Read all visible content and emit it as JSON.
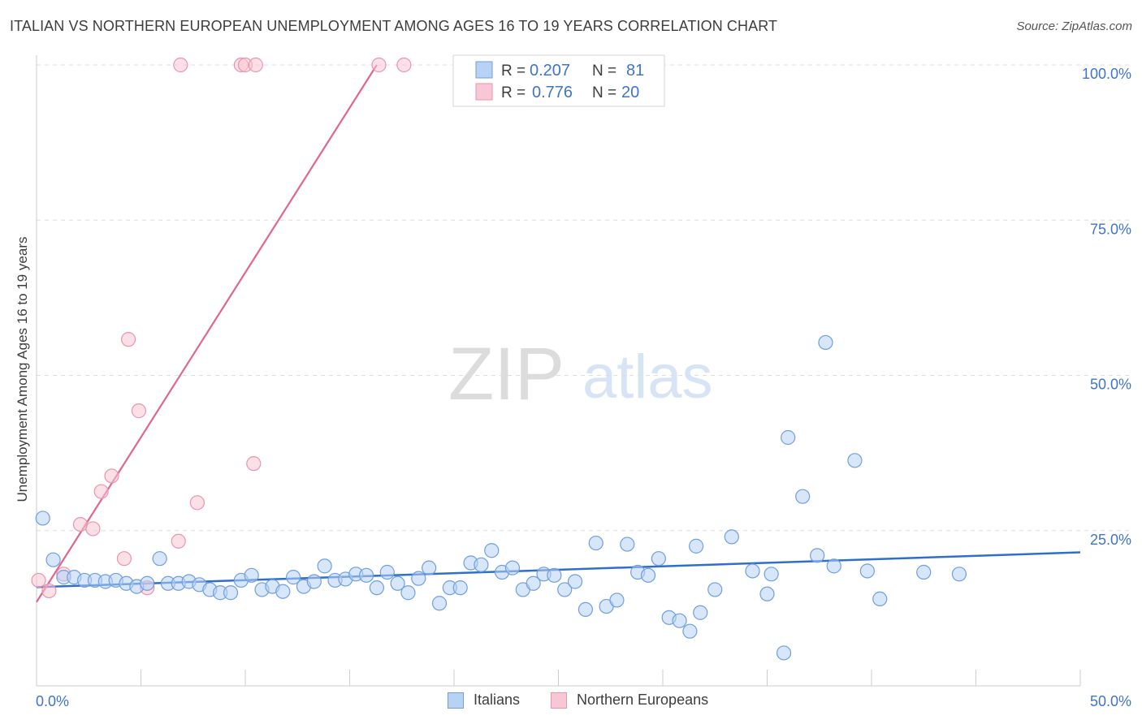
{
  "title": "ITALIAN VS NORTHERN EUROPEAN UNEMPLOYMENT AMONG AGES 16 TO 19 YEARS CORRELATION CHART",
  "source": "Source: ZipAtlas.com",
  "watermark": {
    "zip": "ZIP",
    "atlas": "atlas"
  },
  "colors": {
    "italians_fill": "#b8d2f5",
    "italians_stroke": "#6f9fdc",
    "italians_line": "#2f6fcc",
    "northern_fill": "#f8c6d4",
    "northern_stroke": "#e895ad",
    "northern_line": "#e0668e",
    "tick_label": "#3f74c9",
    "grid": "#dddddd"
  },
  "legend_top": {
    "rows": [
      {
        "r_label": "R =",
        "r_value": "0.207",
        "n_label": "N =",
        "n_value": "81"
      },
      {
        "r_label": "R =",
        "r_value": "0.776",
        "n_label": "N =",
        "n_value": "20"
      }
    ]
  },
  "legend_bottom": {
    "italians": "Italians",
    "northern": "Northern Europeans"
  },
  "chart_data": {
    "type": "scatter",
    "title": "ITALIAN VS NORTHERN EUROPEAN UNEMPLOYMENT AMONG AGES 16 TO 19 YEARS CORRELATION CHART",
    "xlabel": "",
    "ylabel": "Unemployment Among Ages 16 to 19 years",
    "xlim": [
      0,
      50
    ],
    "ylim": [
      0,
      100
    ],
    "x_tick_labels": [
      "0.0%",
      "50.0%"
    ],
    "y_ticks": [
      25,
      50,
      75,
      100
    ],
    "y_tick_labels": [
      "25.0%",
      "50.0%",
      "75.0%",
      "100.0%"
    ],
    "grid": true,
    "legend_position": "top-center",
    "series": [
      {
        "name": "Italians",
        "r": 0.207,
        "n": 81,
        "trend": {
          "x0": 0,
          "y0": 15.9,
          "x1": 50,
          "y1": 21.5
        },
        "points": [
          [
            0.3,
            27.0
          ],
          [
            0.8,
            20.3
          ],
          [
            1.3,
            17.5
          ],
          [
            1.8,
            17.5
          ],
          [
            2.3,
            17.0
          ],
          [
            2.8,
            17.0
          ],
          [
            3.3,
            16.8
          ],
          [
            3.8,
            17.0
          ],
          [
            4.3,
            16.5
          ],
          [
            4.8,
            16.0
          ],
          [
            5.3,
            16.5
          ],
          [
            5.9,
            20.5
          ],
          [
            6.3,
            16.5
          ],
          [
            6.8,
            16.5
          ],
          [
            7.3,
            16.8
          ],
          [
            7.8,
            16.3
          ],
          [
            8.3,
            15.5
          ],
          [
            8.8,
            15.0
          ],
          [
            9.3,
            15.0
          ],
          [
            9.8,
            17.0
          ],
          [
            10.3,
            17.8
          ],
          [
            10.8,
            15.5
          ],
          [
            11.3,
            16.0
          ],
          [
            11.8,
            15.2
          ],
          [
            12.3,
            17.5
          ],
          [
            12.8,
            16.0
          ],
          [
            13.3,
            16.8
          ],
          [
            13.8,
            19.3
          ],
          [
            14.3,
            17.0
          ],
          [
            14.8,
            17.2
          ],
          [
            15.3,
            18.0
          ],
          [
            15.8,
            17.8
          ],
          [
            16.3,
            15.8
          ],
          [
            16.8,
            18.3
          ],
          [
            17.3,
            16.5
          ],
          [
            17.8,
            15.0
          ],
          [
            18.3,
            17.3
          ],
          [
            18.8,
            19.0
          ],
          [
            19.3,
            13.3
          ],
          [
            19.8,
            15.8
          ],
          [
            20.3,
            15.8
          ],
          [
            20.8,
            19.8
          ],
          [
            21.3,
            19.5
          ],
          [
            21.8,
            21.8
          ],
          [
            22.3,
            18.3
          ],
          [
            22.8,
            19.0
          ],
          [
            23.3,
            15.5
          ],
          [
            23.8,
            16.5
          ],
          [
            24.3,
            18.0
          ],
          [
            24.8,
            17.8
          ],
          [
            25.3,
            15.5
          ],
          [
            25.8,
            16.8
          ],
          [
            26.3,
            12.3
          ],
          [
            26.8,
            23.0
          ],
          [
            27.3,
            12.8
          ],
          [
            27.8,
            13.8
          ],
          [
            28.3,
            22.8
          ],
          [
            28.8,
            18.3
          ],
          [
            29.3,
            17.8
          ],
          [
            29.8,
            20.5
          ],
          [
            30.3,
            11.0
          ],
          [
            30.8,
            10.5
          ],
          [
            31.3,
            8.8
          ],
          [
            31.8,
            11.8
          ],
          [
            31.6,
            22.5
          ],
          [
            32.5,
            15.5
          ],
          [
            33.3,
            24.0
          ],
          [
            34.3,
            18.5
          ],
          [
            35.0,
            14.8
          ],
          [
            35.2,
            18.0
          ],
          [
            35.8,
            5.3
          ],
          [
            36.0,
            40.0
          ],
          [
            36.7,
            30.5
          ],
          [
            37.4,
            21.0
          ],
          [
            37.8,
            55.3
          ],
          [
            38.2,
            19.3
          ],
          [
            39.2,
            36.3
          ],
          [
            39.8,
            18.5
          ],
          [
            40.4,
            14.0
          ],
          [
            42.5,
            18.3
          ],
          [
            44.2,
            18.0
          ]
        ]
      },
      {
        "name": "Northern Europeans",
        "r": 0.776,
        "n": 20,
        "trend": {
          "x0": 0,
          "y0": 13.5,
          "x1": 16.3,
          "y1": 100
        },
        "points": [
          [
            0.1,
            17.0
          ],
          [
            0.6,
            15.3
          ],
          [
            1.3,
            18.0
          ],
          [
            2.1,
            26.0
          ],
          [
            2.7,
            25.3
          ],
          [
            3.1,
            31.3
          ],
          [
            3.6,
            33.8
          ],
          [
            4.2,
            20.5
          ],
          [
            4.4,
            55.8
          ],
          [
            4.9,
            44.3
          ],
          [
            5.3,
            15.8
          ],
          [
            6.8,
            23.3
          ],
          [
            7.7,
            29.5
          ],
          [
            10.4,
            35.8
          ],
          [
            6.9,
            100
          ],
          [
            9.8,
            100
          ],
          [
            10.0,
            100
          ],
          [
            10.5,
            100
          ],
          [
            16.4,
            100
          ],
          [
            17.6,
            100
          ]
        ]
      }
    ]
  }
}
